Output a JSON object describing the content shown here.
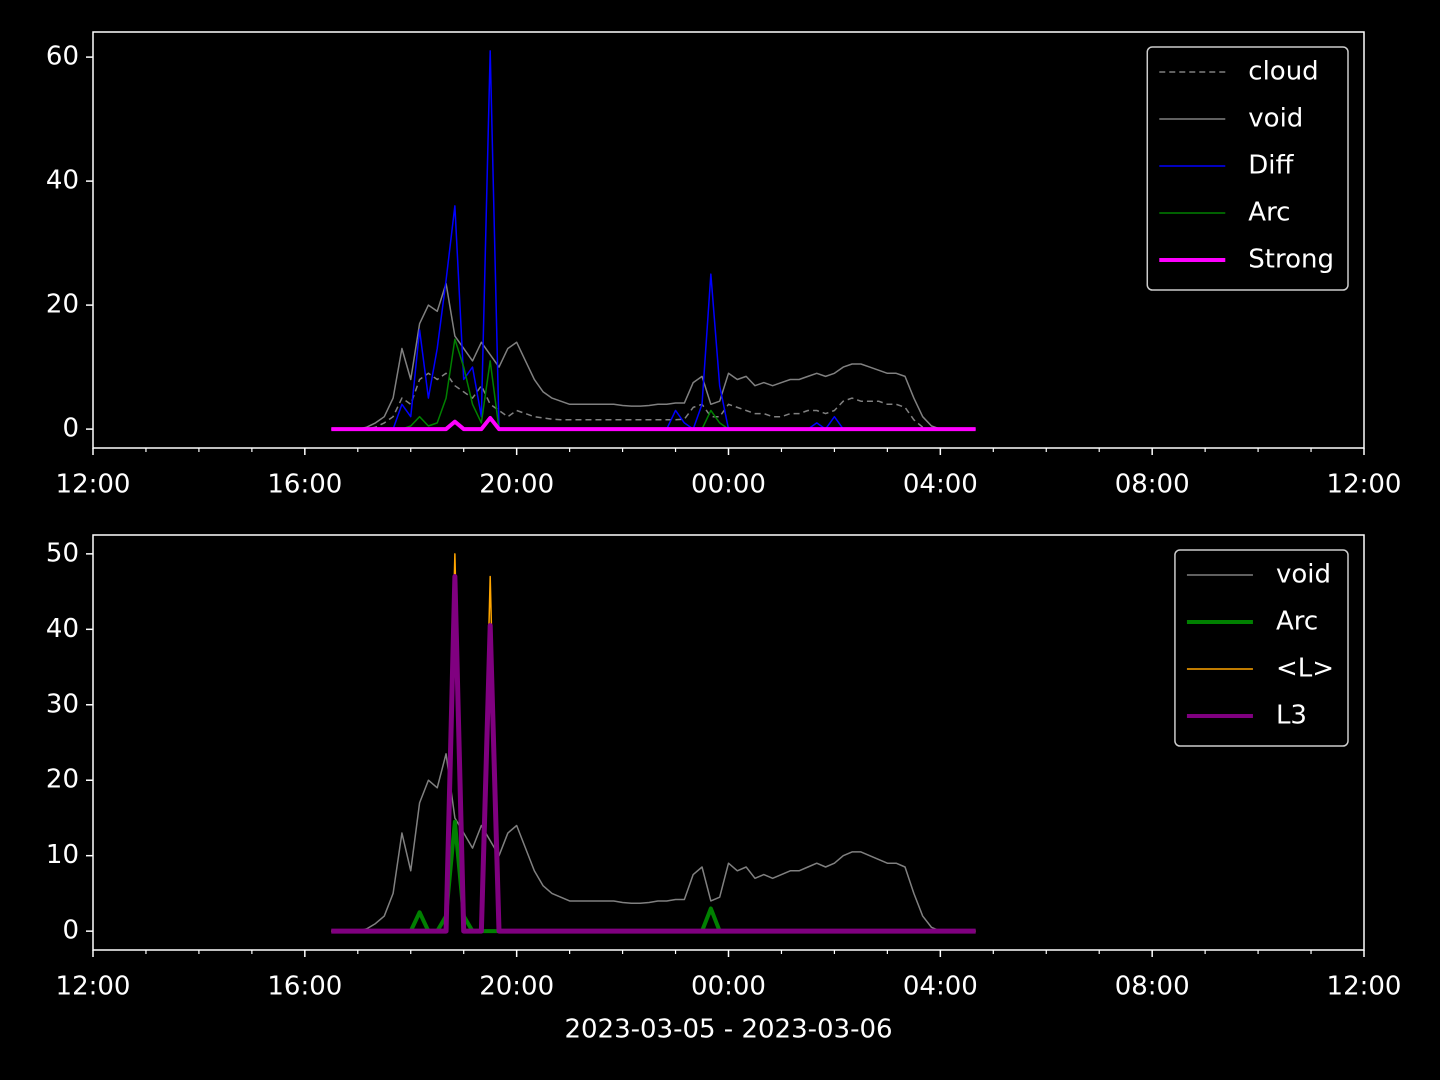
{
  "chart_data": [
    {
      "type": "line",
      "x": [
        270,
        280,
        290,
        300,
        310,
        320,
        330,
        340,
        350,
        360,
        370,
        380,
        390,
        400,
        410,
        420,
        430,
        440,
        450,
        460,
        470,
        480,
        490,
        500,
        510,
        520,
        530,
        540,
        550,
        560,
        570,
        580,
        590,
        600,
        610,
        620,
        630,
        640,
        650,
        660,
        670,
        680,
        690,
        700,
        710,
        720,
        730,
        740,
        750,
        760,
        770,
        780,
        790,
        800,
        810,
        820,
        830,
        840,
        850,
        860,
        870,
        880,
        890,
        900,
        910,
        920,
        930,
        940,
        950,
        960,
        970,
        980,
        990,
        1000
      ],
      "xlim": [
        0,
        1440
      ],
      "xticks": [
        {
          "value": 0,
          "label": "12:00"
        },
        {
          "value": 240,
          "label": "16:00"
        },
        {
          "value": 480,
          "label": "20:00"
        },
        {
          "value": 720,
          "label": "00:00"
        },
        {
          "value": 960,
          "label": "04:00"
        },
        {
          "value": 1200,
          "label": "08:00"
        },
        {
          "value": 1440,
          "label": "12:00"
        }
      ],
      "xminorticks": [
        60,
        120,
        180,
        300,
        360,
        420,
        540,
        600,
        660,
        780,
        840,
        900,
        1020,
        1080,
        1140,
        1260,
        1320,
        1380
      ],
      "ylim": [
        -3.05,
        64.05
      ],
      "yticks": [
        0,
        20,
        40,
        60
      ],
      "legend": "upper right",
      "series": [
        {
          "name": "cloud",
          "color": "#808080",
          "linestyle": "dashed",
          "linewidth": 1.5,
          "values": [
            0,
            0,
            0,
            0,
            0,
            0.3,
            1,
            2,
            5,
            4,
            8,
            9,
            8,
            9,
            7,
            6,
            5,
            7,
            4,
            3,
            2,
            3,
            2.5,
            2,
            1.8,
            1.6,
            1.5,
            1.5,
            1.5,
            1.5,
            1.5,
            1.5,
            1.5,
            1.5,
            1.5,
            1.5,
            1.5,
            1.5,
            1.5,
            1.5,
            1.6,
            3.5,
            4,
            2,
            2,
            4,
            3.5,
            3,
            2.5,
            2.5,
            2,
            2,
            2.5,
            2.5,
            3,
            3,
            2.5,
            3,
            4.5,
            5,
            4.5,
            4.5,
            4.5,
            4,
            4,
            3.5,
            1.5,
            0.3,
            0,
            0,
            0,
            0,
            0,
            0
          ]
        },
        {
          "name": "void",
          "color": "#808080",
          "linestyle": "solid",
          "linewidth": 1.5,
          "values": [
            0,
            0,
            0,
            0,
            0.3,
            1,
            2,
            5,
            13,
            8,
            17,
            20,
            19,
            23.5,
            15,
            13,
            11,
            14,
            12,
            10,
            13,
            14,
            11,
            8,
            6,
            5,
            4.5,
            4,
            4,
            4,
            4,
            4,
            4,
            3.8,
            3.7,
            3.7,
            3.8,
            4,
            4,
            4.2,
            4.2,
            7.5,
            8.5,
            4,
            4.5,
            9,
            8,
            8.5,
            7,
            7.5,
            7,
            7.5,
            8,
            8,
            8.5,
            9,
            8.5,
            9,
            10,
            10.5,
            10.5,
            10,
            9.5,
            9,
            9,
            8.5,
            5,
            2,
            0.5,
            0,
            0,
            0,
            0,
            0
          ]
        },
        {
          "name": "Diff",
          "color": "#0000ff",
          "linestyle": "solid",
          "linewidth": 1.5,
          "values": [
            0,
            0,
            0,
            0,
            0,
            0,
            0,
            0,
            4,
            2,
            16,
            5,
            13,
            24,
            36,
            8,
            10,
            2,
            61,
            0,
            0,
            0,
            0,
            0,
            0,
            0,
            0,
            0,
            0,
            0,
            0,
            0,
            0,
            0,
            0,
            0,
            0,
            0,
            0,
            3,
            1,
            0,
            4,
            25,
            7,
            0,
            0,
            0,
            0,
            0,
            0,
            0,
            0,
            0,
            0,
            1,
            0,
            2,
            0,
            0,
            0,
            0,
            0,
            0,
            0,
            0,
            0,
            0,
            0,
            0,
            0,
            0,
            0,
            0
          ]
        },
        {
          "name": "Arc",
          "color": "#008000",
          "linestyle": "solid",
          "linewidth": 1.5,
          "values": [
            0,
            0,
            0,
            0,
            0,
            0,
            0,
            0,
            0,
            0.5,
            2,
            0.5,
            1,
            5,
            14.5,
            10,
            4,
            1,
            11,
            0,
            0,
            0,
            0,
            0,
            0,
            0,
            0,
            0,
            0,
            0,
            0,
            0,
            0,
            0,
            0,
            0,
            0,
            0,
            0,
            0,
            0,
            0,
            0,
            3,
            1,
            0,
            0,
            0,
            0,
            0,
            0,
            0,
            0,
            0,
            0,
            0,
            0,
            0,
            0,
            0,
            0,
            0,
            0,
            0,
            0,
            0,
            0,
            0,
            0,
            0,
            0,
            0,
            0,
            0
          ]
        },
        {
          "name": "Strong",
          "color": "#ff00ff",
          "linestyle": "solid",
          "linewidth": 4,
          "values": [
            0,
            0,
            0,
            0,
            0,
            0,
            0,
            0,
            0,
            0,
            0,
            0,
            0,
            0,
            1.2,
            0,
            0,
            0,
            1.8,
            0,
            0,
            0,
            0,
            0,
            0,
            0,
            0,
            0,
            0,
            0,
            0,
            0,
            0,
            0,
            0,
            0,
            0,
            0,
            0,
            0,
            0,
            0,
            0,
            0,
            0,
            0,
            0,
            0,
            0,
            0,
            0,
            0,
            0,
            0,
            0,
            0,
            0,
            0,
            0,
            0,
            0,
            0,
            0,
            0,
            0,
            0,
            0,
            0,
            0,
            0,
            0,
            0,
            0,
            0
          ]
        }
      ]
    },
    {
      "type": "line",
      "x": [
        270,
        280,
        290,
        300,
        310,
        320,
        330,
        340,
        350,
        360,
        370,
        380,
        390,
        400,
        410,
        420,
        430,
        440,
        450,
        460,
        470,
        480,
        490,
        500,
        510,
        520,
        530,
        540,
        550,
        560,
        570,
        580,
        590,
        600,
        610,
        620,
        630,
        640,
        650,
        660,
        670,
        680,
        690,
        700,
        710,
        720,
        730,
        740,
        750,
        760,
        770,
        780,
        790,
        800,
        810,
        820,
        830,
        840,
        850,
        860,
        870,
        880,
        890,
        900,
        910,
        920,
        930,
        940,
        950,
        960,
        970,
        980,
        990,
        1000
      ],
      "xlim": [
        0,
        1440
      ],
      "xticks": [
        {
          "value": 0,
          "label": "12:00"
        },
        {
          "value": 240,
          "label": "16:00"
        },
        {
          "value": 480,
          "label": "20:00"
        },
        {
          "value": 720,
          "label": "00:00"
        },
        {
          "value": 960,
          "label": "04:00"
        },
        {
          "value": 1200,
          "label": "08:00"
        },
        {
          "value": 1440,
          "label": "12:00"
        }
      ],
      "xminorticks": [
        60,
        120,
        180,
        300,
        360,
        420,
        540,
        600,
        660,
        780,
        840,
        900,
        1020,
        1080,
        1140,
        1260,
        1320,
        1380
      ],
      "xlabel": "2023-03-05 - 2023-03-06",
      "ylim": [
        -2.5,
        52.5
      ],
      "yticks": [
        0,
        10,
        20,
        30,
        40,
        50
      ],
      "legend": "upper right",
      "series": [
        {
          "name": "void",
          "color": "#808080",
          "linestyle": "solid",
          "linewidth": 1.5,
          "values": [
            0,
            0,
            0,
            0,
            0.3,
            1,
            2,
            5,
            13,
            8,
            17,
            20,
            19,
            23.5,
            15,
            13,
            11,
            14,
            12,
            10,
            13,
            14,
            11,
            8,
            6,
            5,
            4.5,
            4,
            4,
            4,
            4,
            4,
            4,
            3.8,
            3.7,
            3.7,
            3.8,
            4,
            4,
            4.2,
            4.2,
            7.5,
            8.5,
            4,
            4.5,
            9,
            8,
            8.5,
            7,
            7.5,
            7,
            7.5,
            8,
            8,
            8.5,
            9,
            8.5,
            9,
            10,
            10.5,
            10.5,
            10,
            9.5,
            9,
            9,
            8.5,
            5,
            2,
            0.5,
            0,
            0,
            0,
            0,
            0
          ]
        },
        {
          "name": "Arc",
          "color": "#008000",
          "linestyle": "solid",
          "linewidth": 4,
          "values": [
            0,
            0,
            0,
            0,
            0,
            0,
            0,
            0,
            0,
            0,
            2.5,
            0,
            0,
            2,
            14.5,
            2,
            0,
            0,
            0,
            0,
            0,
            0,
            0,
            0,
            0,
            0,
            0,
            0,
            0,
            0,
            0,
            0,
            0,
            0,
            0,
            0,
            0,
            0,
            0,
            0,
            0,
            0,
            0,
            3,
            0,
            0,
            0,
            0,
            0,
            0,
            0,
            0,
            0,
            0,
            0,
            0,
            0,
            0,
            0,
            0,
            0,
            0,
            0,
            0,
            0,
            0,
            0,
            0,
            0,
            0,
            0,
            0,
            0,
            0
          ]
        },
        {
          "name": "<L>",
          "color": "#ffa500",
          "linestyle": "solid",
          "linewidth": 1.5,
          "values": [
            0,
            0,
            0,
            0,
            0,
            0,
            0,
            0,
            0,
            0,
            0,
            0,
            0,
            0,
            50,
            0,
            0,
            0,
            47,
            0,
            0,
            0,
            0,
            0,
            0,
            0,
            0,
            0,
            0,
            0,
            0,
            0,
            0,
            0,
            0,
            0,
            0,
            0,
            0,
            0,
            0,
            0,
            0,
            0,
            0,
            0,
            0,
            0,
            0,
            0,
            0,
            0,
            0,
            0,
            0,
            0,
            0,
            0,
            0,
            0,
            0,
            0,
            0,
            0,
            0,
            0,
            0,
            0,
            0,
            0,
            0,
            0,
            0,
            0
          ]
        },
        {
          "name": "L3",
          "color": "#800080",
          "linestyle": "solid",
          "linewidth": 5,
          "values": [
            0,
            0,
            0,
            0,
            0,
            0,
            0,
            0,
            0,
            0,
            0,
            0,
            0,
            0,
            47,
            0,
            0,
            0,
            40.5,
            0,
            0,
            0,
            0,
            0,
            0,
            0,
            0,
            0,
            0,
            0,
            0,
            0,
            0,
            0,
            0,
            0,
            0,
            0,
            0,
            0,
            0,
            0,
            0,
            0,
            0,
            0,
            0,
            0,
            0,
            0,
            0,
            0,
            0,
            0,
            0,
            0,
            0,
            0,
            0,
            0,
            0,
            0,
            0,
            0,
            0,
            0,
            0,
            0,
            0,
            0,
            0,
            0,
            0,
            0
          ]
        }
      ]
    }
  ]
}
